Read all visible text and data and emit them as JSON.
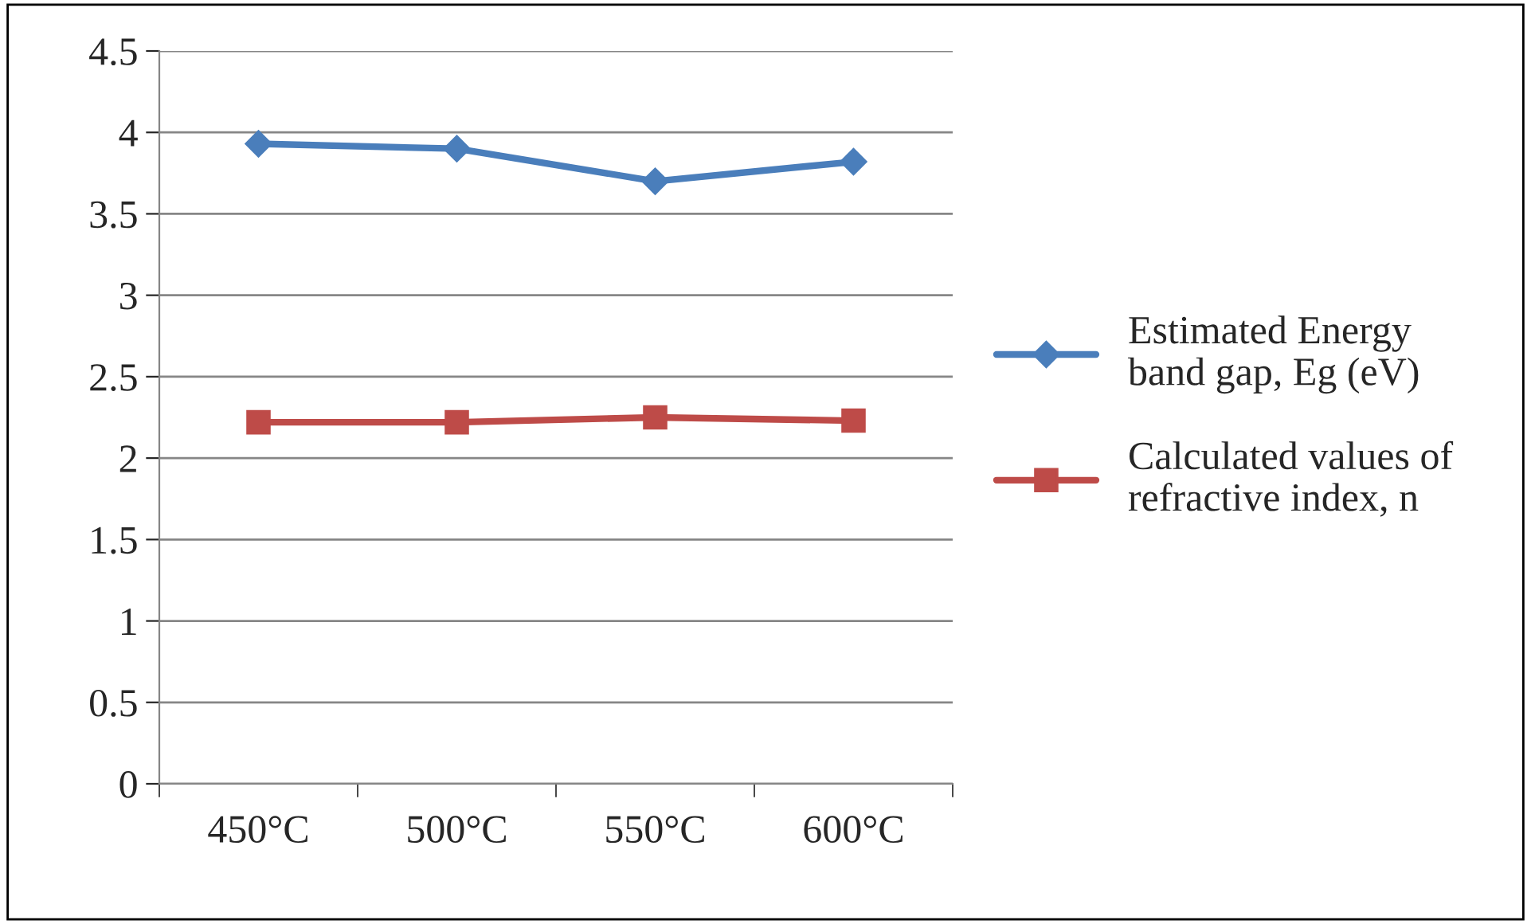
{
  "chart_data": {
    "type": "line",
    "categories": [
      "450°C",
      "500°C",
      "550°C",
      "600°C"
    ],
    "series": [
      {
        "name": "Estimated Energy\nband gap, Eg (eV)",
        "color": "#4a7ebb",
        "values": [
          3.93,
          3.9,
          3.7,
          3.82
        ],
        "marker": "diamond"
      },
      {
        "name": "Calculated values of\nrefractive index, n",
        "color": "#be4b48",
        "values": [
          2.22,
          2.22,
          2.25,
          2.23
        ],
        "marker": "square"
      }
    ],
    "ylim": [
      0,
      4.5
    ],
    "yticks": [
      0,
      0.5,
      1,
      1.5,
      2,
      2.5,
      3,
      3.5,
      4,
      4.5
    ],
    "grid": "y",
    "legend": "right",
    "line_style": "solid"
  }
}
